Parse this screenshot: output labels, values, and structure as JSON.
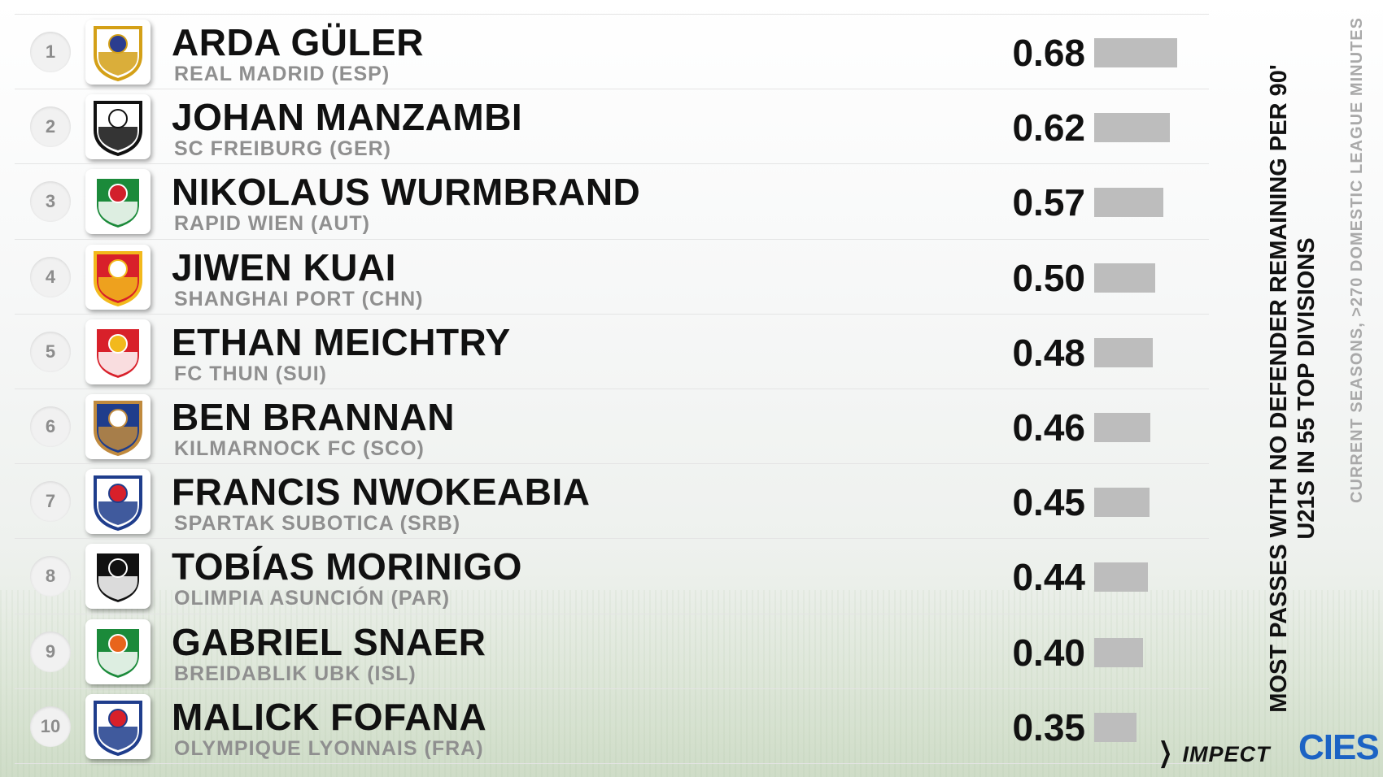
{
  "title_lines": [
    "MOST PASSES WITH NO DEFENDER REMAINING PER 90'",
    "U21S IN 55 TOP DIVISIONS"
  ],
  "subtitle": "CURRENT SEASONS, >270 DOMESTIC LEAGUE MINUTES",
  "brand": {
    "impect": "IMPECT",
    "cies": "CIES"
  },
  "chart_data": {
    "type": "bar",
    "title": "MOST PASSES WITH NO DEFENDER REMAINING PER 90'",
    "subtitle": "U21S IN 55 TOP DIVISIONS",
    "note": "CURRENT SEASONS, >270 DOMESTIC LEAGUE MINUTES",
    "orientation": "horizontal",
    "xlim": [
      0,
      0.68
    ],
    "categories": [
      "ARDA GÜLER",
      "JOHAN MANZAMBI",
      "NIKOLAUS WURMBRAND",
      "JIWEN KUAI",
      "ETHAN MEICHTRY",
      "BEN BRANNAN",
      "FRANCIS NWOKEABIA",
      "TOBÍAS MORINIGO",
      "GABRIEL SNAER",
      "MALICK FOFANA"
    ],
    "values": [
      0.68,
      0.62,
      0.57,
      0.5,
      0.48,
      0.46,
      0.45,
      0.44,
      0.4,
      0.35
    ],
    "bar_color": "#bdbdbd",
    "rows": [
      {
        "rank": "1",
        "player": "ARDA GÜLER",
        "club": "REAL MADRID (ESP)",
        "value": 0.68,
        "label": "0.68",
        "badge": "real-madrid-badge-icon",
        "badge_colors": [
          "#ffffff",
          "#d4a017",
          "#2b3d8f"
        ]
      },
      {
        "rank": "2",
        "player": "JOHAN MANZAMBI",
        "club": "SC FREIBURG (GER)",
        "value": 0.62,
        "label": "0.62",
        "badge": "freiburg-badge-icon",
        "badge_colors": [
          "#ffffff",
          "#111111",
          "#ffffff"
        ]
      },
      {
        "rank": "3",
        "player": "NIKOLAUS WURMBRAND",
        "club": "RAPID WIEN (AUT)",
        "value": 0.57,
        "label": "0.57",
        "badge": "rapid-wien-badge-icon",
        "badge_colors": [
          "#1b8a3a",
          "#ffffff",
          "#d21f2b"
        ]
      },
      {
        "rank": "4",
        "player": "JIWEN KUAI",
        "club": "SHANGHAI PORT (CHN)",
        "value": 0.5,
        "label": "0.50",
        "badge": "shanghai-port-badge-icon",
        "badge_colors": [
          "#d8202a",
          "#f2b91c",
          "#ffffff"
        ]
      },
      {
        "rank": "5",
        "player": "ETHAN MEICHTRY",
        "club": "FC THUN (SUI)",
        "value": 0.48,
        "label": "0.48",
        "badge": "fc-thun-badge-icon",
        "badge_colors": [
          "#d8202a",
          "#ffffff",
          "#f2b91c"
        ]
      },
      {
        "rank": "6",
        "player": "BEN BRANNAN",
        "club": "KILMARNOCK FC (SCO)",
        "value": 0.46,
        "label": "0.46",
        "badge": "kilmarnock-badge-icon",
        "badge_colors": [
          "#1f3d8c",
          "#c08a3e",
          "#ffffff"
        ]
      },
      {
        "rank": "7",
        "player": "FRANCIS NWOKEABIA",
        "club": "SPARTAK SUBOTICA (SRB)",
        "value": 0.45,
        "label": "0.45",
        "badge": "spartak-subotica-badge-icon",
        "badge_colors": [
          "#ffffff",
          "#1f3d8c",
          "#d8202a"
        ]
      },
      {
        "rank": "8",
        "player": "TOBÍAS MORINIGO",
        "club": "OLIMPIA ASUNCIÓN (PAR)",
        "value": 0.44,
        "label": "0.44",
        "badge": "olimpia-badge-icon",
        "badge_colors": [
          "#111111",
          "#ffffff",
          "#111111"
        ]
      },
      {
        "rank": "9",
        "player": "GABRIEL SNAER",
        "club": "BREIDABLIK UBK (ISL)",
        "value": 0.4,
        "label": "0.40",
        "badge": "breidablik-badge-icon",
        "badge_colors": [
          "#1b8a3a",
          "#ffffff",
          "#e8641c"
        ]
      },
      {
        "rank": "10",
        "player": "MALICK FOFANA",
        "club": "OLYMPIQUE LYONNAIS (FRA)",
        "value": 0.35,
        "label": "0.35",
        "badge": "lyon-badge-icon",
        "badge_colors": [
          "#ffffff",
          "#1f3d8c",
          "#d8202a"
        ]
      }
    ]
  }
}
